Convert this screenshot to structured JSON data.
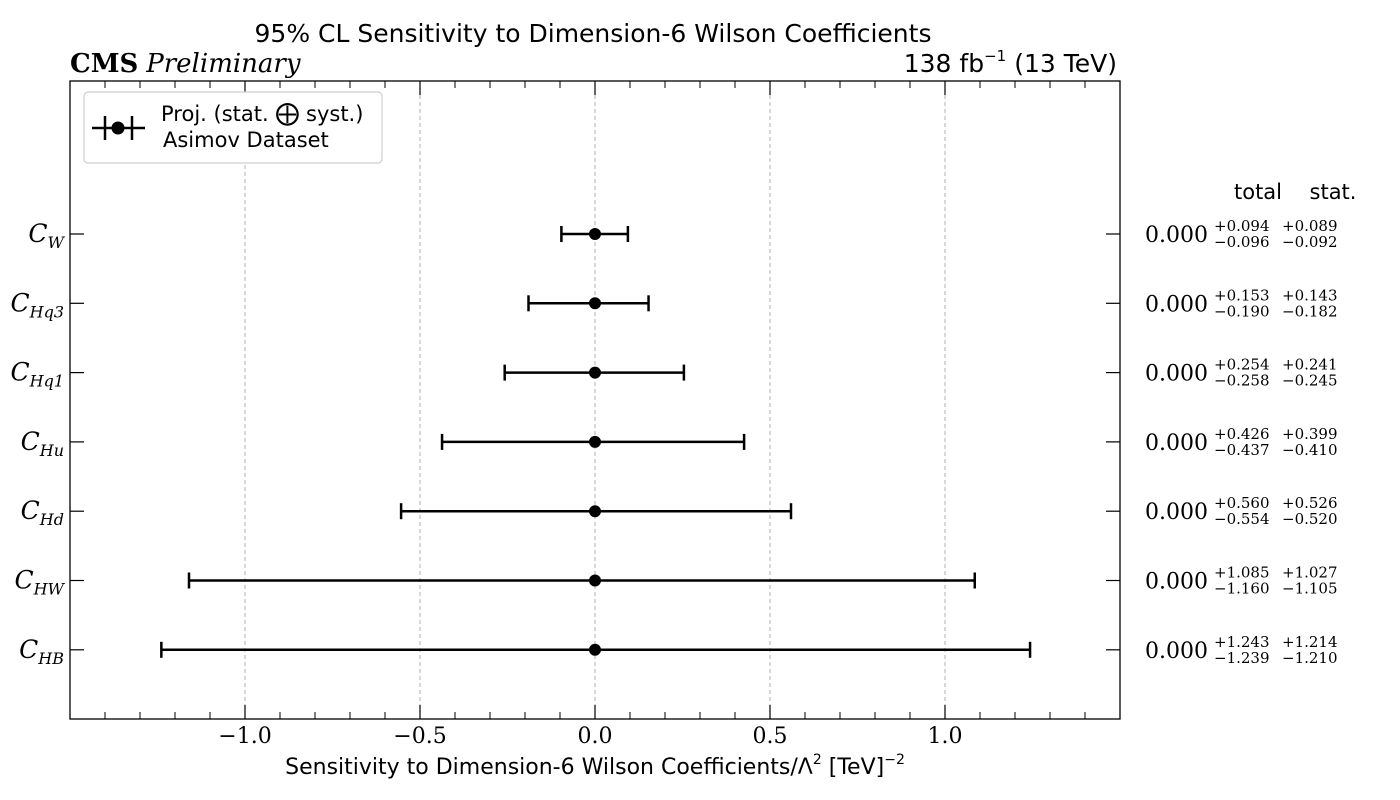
{
  "chart_data": {
    "type": "scatter",
    "title": "95% CL Sensitivity to Dimension-6 Wilson Coefficients",
    "experiment_label": "CMS",
    "experiment_status": "Preliminary",
    "luminosity_label": "138 fb",
    "luminosity_exponent": "−1",
    "energy_label": "(13 TeV)",
    "xlabel_prefix": "Sensitivity to Dimension-6 Wilson Coefficients/Λ",
    "xlabel_sq": "2",
    "xlabel_unit": " [TeV]",
    "xlabel_unit_exp": "−2",
    "xlim": [
      -1.5,
      1.5
    ],
    "x_ticks": [
      {
        "value": -1.0,
        "label": "−1.0"
      },
      {
        "value": -0.5,
        "label": "−0.5"
      },
      {
        "value": 0.0,
        "label": "0.0"
      },
      {
        "value": 0.5,
        "label": "0.5"
      },
      {
        "value": 1.0,
        "label": "1.0"
      }
    ],
    "grid": "vertical dashed at major x ticks",
    "legend": {
      "placement": "top-left",
      "line1_prefix": "Proj. (stat. ",
      "line1_symbol": "⨁",
      "line1_suffix": " syst.)",
      "line2": "Asimov Dataset"
    },
    "column_headers": {
      "total": "total",
      "stat": "stat."
    },
    "series": [
      {
        "symbol": "C",
        "sub": "W",
        "central": 0.0,
        "central_label": "0.000",
        "total_plus": "+0.094",
        "total_minus": "−0.096",
        "stat_plus": "+0.089",
        "stat_minus": "−0.092",
        "err_up": 0.094,
        "err_down": 0.096
      },
      {
        "symbol": "C",
        "sub": "Hq3",
        "central": 0.0,
        "central_label": "0.000",
        "total_plus": "+0.153",
        "total_minus": "−0.190",
        "stat_plus": "+0.143",
        "stat_minus": "−0.182",
        "err_up": 0.153,
        "err_down": 0.19
      },
      {
        "symbol": "C",
        "sub": "Hq1",
        "central": 0.0,
        "central_label": "0.000",
        "total_plus": "+0.254",
        "total_minus": "−0.258",
        "stat_plus": "+0.241",
        "stat_minus": "−0.245",
        "err_up": 0.254,
        "err_down": 0.258
      },
      {
        "symbol": "C",
        "sub": "Hu",
        "central": 0.0,
        "central_label": "0.000",
        "total_plus": "+0.426",
        "total_minus": "−0.437",
        "stat_plus": "+0.399",
        "stat_minus": "−0.410",
        "err_up": 0.426,
        "err_down": 0.437
      },
      {
        "symbol": "C",
        "sub": "Hd",
        "central": 0.0,
        "central_label": "0.000",
        "total_plus": "+0.560",
        "total_minus": "−0.554",
        "stat_plus": "+0.526",
        "stat_minus": "−0.520",
        "err_up": 0.56,
        "err_down": 0.554
      },
      {
        "symbol": "C",
        "sub": "HW",
        "central": 0.0,
        "central_label": "0.000",
        "total_plus": "+1.085",
        "total_minus": "−1.160",
        "stat_plus": "+1.027",
        "stat_minus": "−1.105",
        "err_up": 1.085,
        "err_down": 1.16
      },
      {
        "symbol": "C",
        "sub": "HB",
        "central": 0.0,
        "central_label": "0.000",
        "total_plus": "+1.243",
        "total_minus": "−1.239",
        "stat_plus": "+1.214",
        "stat_minus": "−1.210",
        "err_up": 1.243,
        "err_down": 1.239
      }
    ],
    "colors": {
      "marker": "#000000",
      "grid": "#b0b0b0",
      "axes": "#000000"
    }
  }
}
